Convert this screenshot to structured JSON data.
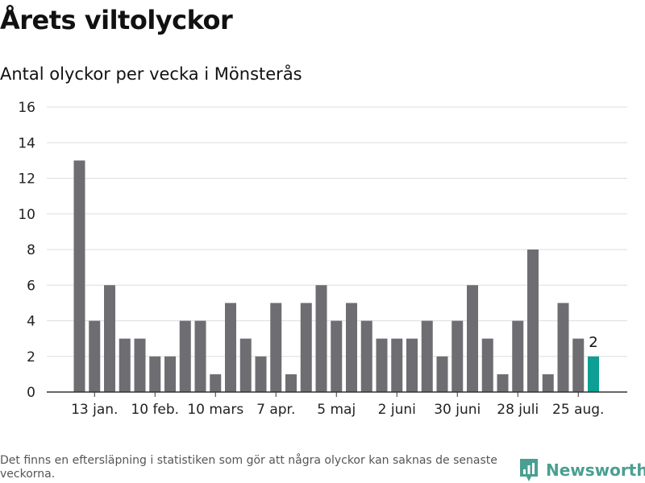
{
  "header": {
    "title": "Årets viltolyckor",
    "subtitle": "Antal olyckor per vecka i Mönsterås"
  },
  "footer": {
    "note": "Det finns en eftersläpning i statistiken som gör att några olyckor kan saknas de senaste veckorna.",
    "brand": "Newsworthy",
    "brand_icon": "newsworthy-logo-icon"
  },
  "colors": {
    "bar": "#6e6d71",
    "highlight": "#0d9e94",
    "grid": "#dddddd",
    "brand": "#4a9f92"
  },
  "chart_data": {
    "type": "bar",
    "title": "Årets viltolyckor",
    "subtitle": "Antal olyckor per vecka i Mönsterås",
    "ylim": [
      0,
      16
    ],
    "yticks": [
      0,
      2,
      4,
      6,
      8,
      10,
      12,
      14,
      16
    ],
    "grid": true,
    "legend": "none",
    "values": [
      13,
      4,
      6,
      3,
      3,
      2,
      2,
      4,
      4,
      1,
      5,
      3,
      2,
      5,
      1,
      5,
      6,
      4,
      5,
      4,
      3,
      3,
      3,
      4,
      2,
      4,
      6,
      3,
      1,
      4,
      8,
      1,
      5,
      3,
      2
    ],
    "highlight_index": 34,
    "highlight_label": "2",
    "xtick_labels": [
      {
        "index": 1,
        "label": "13 jan."
      },
      {
        "index": 5,
        "label": "10 feb."
      },
      {
        "index": 9,
        "label": "10 mars"
      },
      {
        "index": 13,
        "label": "7 apr."
      },
      {
        "index": 17,
        "label": "5 maj"
      },
      {
        "index": 21,
        "label": "2 juni"
      },
      {
        "index": 25,
        "label": "30 juni"
      },
      {
        "index": 29,
        "label": "28 juli"
      },
      {
        "index": 33,
        "label": "25 aug."
      }
    ]
  }
}
